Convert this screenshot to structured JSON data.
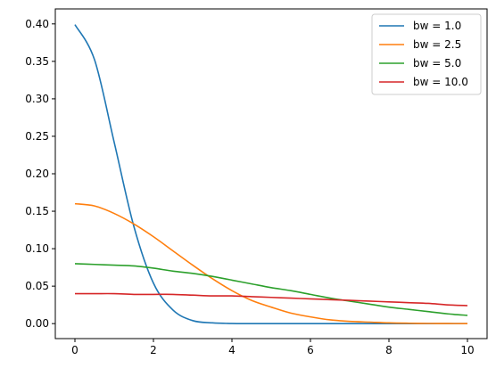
{
  "chart_data": {
    "type": "line",
    "title": "",
    "xlabel": "",
    "ylabel": "",
    "xlim": [
      -0.5,
      10.5
    ],
    "ylim": [
      -0.02,
      0.42
    ],
    "x_ticks": [
      0,
      2,
      4,
      6,
      8,
      10
    ],
    "x_tick_labels": [
      "0",
      "2",
      "4",
      "6",
      "8",
      "10"
    ],
    "y_ticks": [
      0.0,
      0.05,
      0.1,
      0.15,
      0.2,
      0.25,
      0.3,
      0.35,
      0.4
    ],
    "y_tick_labels": [
      "0.00",
      "0.05",
      "0.10",
      "0.15",
      "0.20",
      "0.25",
      "0.30",
      "0.35",
      "0.40"
    ],
    "grid": false,
    "legend_position": "top-right",
    "x": [
      0,
      0.5,
      1,
      1.5,
      2,
      2.5,
      3,
      3.5,
      4,
      4.5,
      5,
      5.5,
      6,
      6.5,
      7,
      7.5,
      8,
      8.5,
      9,
      9.5,
      10
    ],
    "series": [
      {
        "name": "bw = 1.0",
        "color": "#1f77b4",
        "values": [
          0.399,
          0.352,
          0.242,
          0.13,
          0.054,
          0.018,
          0.004,
          0.001,
          0.0001,
          0.0,
          0.0,
          0.0,
          0.0,
          0.0,
          0.0,
          0.0,
          0.0,
          0.0,
          0.0,
          0.0,
          0.0
        ]
      },
      {
        "name": "bw = 2.5",
        "color": "#ff7f0e",
        "values": [
          0.16,
          0.157,
          0.147,
          0.133,
          0.116,
          0.097,
          0.078,
          0.06,
          0.044,
          0.031,
          0.022,
          0.014,
          0.009,
          0.005,
          0.003,
          0.002,
          0.001,
          0.0005,
          0.0002,
          0.0001,
          0.0
        ]
      },
      {
        "name": "bw = 5.0",
        "color": "#2ca02c",
        "values": [
          0.08,
          0.079,
          0.078,
          0.077,
          0.074,
          0.07,
          0.067,
          0.063,
          0.058,
          0.053,
          0.048,
          0.044,
          0.039,
          0.034,
          0.03,
          0.026,
          0.022,
          0.019,
          0.016,
          0.013,
          0.011
        ]
      },
      {
        "name": "bw = 10.0",
        "color": "#d62728",
        "values": [
          0.04,
          0.04,
          0.04,
          0.039,
          0.039,
          0.039,
          0.038,
          0.037,
          0.037,
          0.036,
          0.035,
          0.034,
          0.033,
          0.032,
          0.031,
          0.03,
          0.029,
          0.028,
          0.027,
          0.025,
          0.024
        ]
      }
    ]
  }
}
